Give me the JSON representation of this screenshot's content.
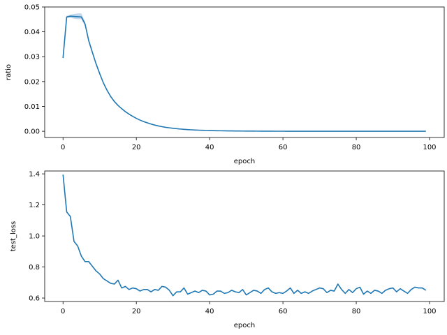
{
  "chart_data": [
    {
      "type": "line",
      "xlabel": "epoch",
      "ylabel": "ratio",
      "xlim": [
        -5,
        104
      ],
      "ylim": [
        -0.0025,
        0.05
      ],
      "xticks": [
        0,
        20,
        40,
        60,
        80,
        100
      ],
      "xtick_labels": [
        "0",
        "20",
        "40",
        "60",
        "80",
        "100"
      ],
      "yticks": [
        0.0,
        0.01,
        0.02,
        0.03,
        0.04,
        0.05
      ],
      "ytick_labels": [
        "0.00",
        "0.01",
        "0.02",
        "0.03",
        "0.04",
        "0.05"
      ],
      "grid": false,
      "color": "#1f77b4",
      "band_color": "#a6c8e4",
      "series": [
        {
          "x": [
            0,
            1,
            2,
            3,
            4,
            5,
            6,
            7,
            8,
            9,
            10,
            11,
            12,
            13,
            14,
            15,
            16,
            17,
            18,
            19,
            20,
            21,
            22,
            23,
            24,
            25,
            26,
            27,
            28,
            29,
            30,
            31,
            32,
            33,
            34,
            35,
            36,
            37,
            38,
            39,
            40,
            41,
            42,
            43,
            44,
            45,
            46,
            47,
            48,
            49,
            50,
            51,
            52,
            53,
            54,
            55,
            56,
            57,
            58,
            59,
            60,
            61,
            62,
            63,
            64,
            65,
            66,
            67,
            68,
            69,
            70,
            71,
            72,
            73,
            74,
            75,
            76,
            77,
            78,
            79,
            80,
            81,
            82,
            83,
            84,
            85,
            86,
            87,
            88,
            89,
            90,
            91,
            92,
            93,
            94,
            95,
            96,
            97,
            98,
            99
          ],
          "values": [
            0.0295,
            0.046,
            0.0463,
            0.0462,
            0.0461,
            0.046,
            0.0432,
            0.0365,
            0.0318,
            0.0272,
            0.0232,
            0.0195,
            0.0165,
            0.014,
            0.012,
            0.0104,
            0.0091,
            0.0079,
            0.0069,
            0.006,
            0.0052,
            0.0045,
            0.0039,
            0.0034,
            0.0029,
            0.0025,
            0.00215,
            0.00185,
            0.0016,
            0.0014,
            0.0012,
            0.00104,
            0.0009,
            0.00078,
            0.00068,
            0.00059,
            0.00051,
            0.00045,
            0.00039,
            0.00034,
            0.0003,
            0.00026,
            0.00023,
            0.0002,
            0.00018,
            0.00016,
            0.00014,
            0.00012,
            0.00011,
            0.0001,
            9e-05,
            8e-05,
            7e-05,
            6e-05,
            5e-05,
            5e-05,
            4e-05,
            4e-05,
            3e-05,
            3e-05,
            3e-05,
            2e-05,
            2e-05,
            2e-05,
            2e-05,
            1e-05,
            1e-05,
            1e-05,
            1e-05,
            1e-05,
            1e-05,
            1e-05,
            1e-05,
            0,
            0,
            0,
            0,
            0,
            0,
            0,
            0,
            0,
            0,
            0,
            0,
            0,
            0,
            0,
            0,
            0,
            0,
            0,
            0,
            0,
            0,
            0,
            0,
            0,
            0,
            0
          ],
          "lower": [
            0.0289,
            0.0456,
            0.0457,
            0.0453,
            0.0451,
            0.0451,
            0.0424,
            0.0358,
            0.0312,
            0.0267,
            0.0228,
            0.0192,
            0.0162,
            0.0137,
            0.0118,
            0.0102,
            0.0089,
            0.0078,
            0.0068,
            0.0059,
            0.0051,
            0.0044,
            0.0038,
            0.0033,
            0.00285,
            0.00245,
            0.0021,
            0.0018,
            0.00155,
            0.00135,
            0.00116,
            0.001,
            0.00087,
            0.00075,
            0.00065,
            0.00057,
            0.00049,
            0.00043,
            0.00037,
            0.00032,
            0.00028,
            0.00024,
            0.00021,
            0.00019,
            0.00017,
            0.00015,
            0.00013,
            0.00011,
            0.0001,
            9e-05,
            8e-05,
            7e-05,
            6e-05,
            5e-05,
            4e-05,
            4e-05,
            3e-05,
            3e-05,
            2e-05,
            2e-05,
            2e-05,
            1e-05,
            1e-05,
            1e-05,
            1e-05,
            1e-05,
            1e-05,
            0,
            0,
            0,
            0,
            0,
            0,
            0,
            0,
            0,
            0,
            0,
            0,
            0,
            0,
            0,
            0,
            0,
            0,
            0,
            0,
            0,
            0,
            0,
            0,
            0,
            0,
            0,
            0,
            0,
            0,
            0,
            0,
            0
          ],
          "upper": [
            0.0301,
            0.0464,
            0.0469,
            0.0472,
            0.0474,
            0.0474,
            0.0441,
            0.0372,
            0.0324,
            0.0277,
            0.0236,
            0.0198,
            0.0168,
            0.0143,
            0.0122,
            0.0106,
            0.0093,
            0.0081,
            0.0071,
            0.0062,
            0.0053,
            0.0046,
            0.004,
            0.0035,
            0.00295,
            0.00255,
            0.0022,
            0.0019,
            0.00165,
            0.00145,
            0.00124,
            0.00108,
            0.00093,
            0.00081,
            0.00071,
            0.00061,
            0.00053,
            0.00047,
            0.00041,
            0.00036,
            0.00032,
            0.00028,
            0.00025,
            0.00021,
            0.00019,
            0.00017,
            0.00015,
            0.00013,
            0.00012,
            0.00011,
            0.0001,
            9e-05,
            8e-05,
            7e-05,
            6e-05,
            6e-05,
            5e-05,
            5e-05,
            4e-05,
            4e-05,
            4e-05,
            3e-05,
            3e-05,
            3e-05,
            3e-05,
            2e-05,
            2e-05,
            2e-05,
            2e-05,
            2e-05,
            2e-05,
            2e-05,
            2e-05,
            1e-05,
            1e-05,
            1e-05,
            1e-05,
            1e-05,
            1e-05,
            1e-05,
            1e-05,
            1e-05,
            1e-05,
            1e-05,
            1e-05,
            1e-05,
            1e-05,
            1e-05,
            1e-05,
            1e-05,
            1e-05,
            1e-05,
            1e-05,
            1e-05,
            1e-05,
            1e-05,
            1e-05,
            1e-05,
            1e-05,
            1e-05
          ]
        }
      ]
    },
    {
      "type": "line",
      "xlabel": "epoch",
      "ylabel": "test_loss",
      "xlim": [
        -5,
        104
      ],
      "ylim": [
        0.5777,
        1.4185
      ],
      "xticks": [
        0,
        20,
        40,
        60,
        80,
        100
      ],
      "xtick_labels": [
        "0",
        "20",
        "40",
        "60",
        "80",
        "100"
      ],
      "yticks": [
        0.6,
        0.8,
        1.0,
        1.2,
        1.4
      ],
      "ytick_labels": [
        "0.6",
        "0.8",
        "1.0",
        "1.2",
        "1.4"
      ],
      "grid": false,
      "color": "#1f77b4",
      "series": [
        {
          "x": [
            0,
            1,
            2,
            3,
            4,
            5,
            6,
            7,
            8,
            9,
            10,
            11,
            12,
            13,
            14,
            15,
            16,
            17,
            18,
            19,
            20,
            21,
            22,
            23,
            24,
            25,
            26,
            27,
            28,
            29,
            30,
            31,
            32,
            33,
            34,
            35,
            36,
            37,
            38,
            39,
            40,
            41,
            42,
            43,
            44,
            45,
            46,
            47,
            48,
            49,
            50,
            51,
            52,
            53,
            54,
            55,
            56,
            57,
            58,
            59,
            60,
            61,
            62,
            63,
            64,
            65,
            66,
            67,
            68,
            69,
            70,
            71,
            72,
            73,
            74,
            75,
            76,
            77,
            78,
            79,
            80,
            81,
            82,
            83,
            84,
            85,
            86,
            87,
            88,
            89,
            90,
            91,
            92,
            93,
            94,
            95,
            96,
            97,
            98,
            99
          ],
          "values": [
            1.395,
            1.155,
            1.125,
            0.965,
            0.935,
            0.87,
            0.835,
            0.835,
            0.805,
            0.775,
            0.755,
            0.725,
            0.71,
            0.695,
            0.69,
            0.715,
            0.665,
            0.675,
            0.655,
            0.665,
            0.66,
            0.645,
            0.655,
            0.655,
            0.64,
            0.655,
            0.65,
            0.675,
            0.67,
            0.65,
            0.615,
            0.64,
            0.64,
            0.665,
            0.625,
            0.635,
            0.645,
            0.635,
            0.65,
            0.645,
            0.62,
            0.625,
            0.645,
            0.645,
            0.63,
            0.635,
            0.65,
            0.64,
            0.635,
            0.655,
            0.62,
            0.635,
            0.65,
            0.645,
            0.63,
            0.655,
            0.665,
            0.64,
            0.63,
            0.635,
            0.63,
            0.645,
            0.665,
            0.63,
            0.65,
            0.63,
            0.64,
            0.63,
            0.645,
            0.655,
            0.665,
            0.66,
            0.635,
            0.65,
            0.645,
            0.69,
            0.655,
            0.63,
            0.655,
            0.635,
            0.66,
            0.67,
            0.625,
            0.645,
            0.63,
            0.65,
            0.645,
            0.63,
            0.65,
            0.66,
            0.665,
            0.64,
            0.66,
            0.645,
            0.63,
            0.655,
            0.67,
            0.665,
            0.665,
            0.65
          ]
        }
      ]
    }
  ]
}
